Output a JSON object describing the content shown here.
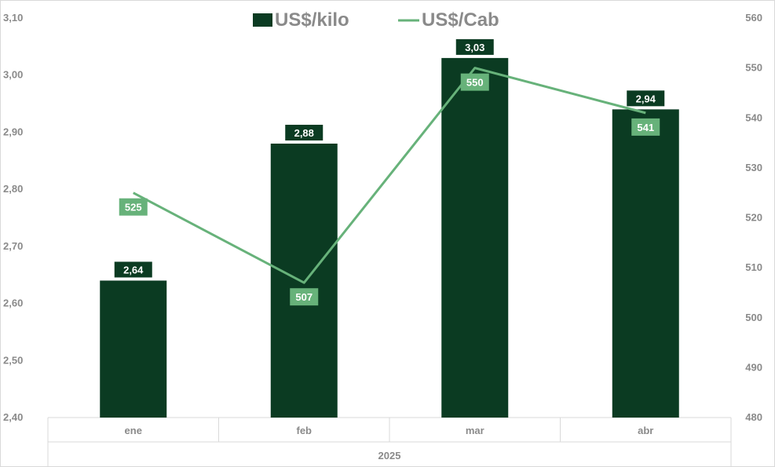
{
  "chart_data": {
    "type": "bar",
    "categories": [
      "ene",
      "feb",
      "mar",
      "abr"
    ],
    "group_label": "2025",
    "series": [
      {
        "name": "US$/kilo",
        "type": "bar",
        "axis": "left",
        "color": "#0b3b22",
        "values": [
          2.64,
          2.88,
          3.03,
          2.94
        ],
        "labels": [
          "2,64",
          "2,88",
          "3,03",
          "2,94"
        ]
      },
      {
        "name": "US$/Cab",
        "type": "line",
        "axis": "right",
        "color": "#67b27a",
        "values": [
          525,
          507,
          550,
          541
        ],
        "labels": [
          "525",
          "507",
          "550",
          "541"
        ]
      }
    ],
    "y_left": {
      "min": 2.4,
      "max": 3.1,
      "ticks": [
        "2,40",
        "2,50",
        "2,60",
        "2,70",
        "2,80",
        "2,90",
        "3,00",
        "3,10"
      ]
    },
    "y_right": {
      "min": 480,
      "max": 560,
      "ticks": [
        "480",
        "490",
        "500",
        "510",
        "520",
        "530",
        "540",
        "550",
        "560"
      ]
    },
    "legend_position": "top-center",
    "grid": false
  }
}
